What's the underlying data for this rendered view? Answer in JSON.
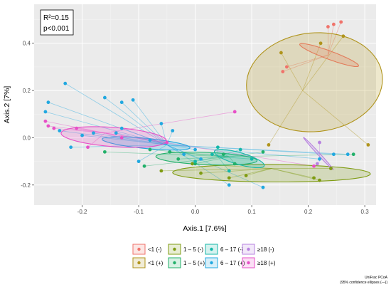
{
  "chart_data": {
    "type": "scatter",
    "xlabel": "Axis.1   [7.6%]",
    "ylabel": "Axis.2   [7%]",
    "xlim": [
      -0.285,
      0.32
    ],
    "ylim": [
      -0.285,
      0.565
    ],
    "x_ticks": [
      -0.2,
      -0.1,
      0.0,
      0.1,
      0.2,
      0.3
    ],
    "x_tick_labels": [
      "-0.2",
      "-0.1",
      "0.0",
      "0.1",
      "0.2",
      "0.3"
    ],
    "y_ticks": [
      -0.2,
      0.0,
      0.2,
      0.4
    ],
    "y_tick_labels": [
      "-0.2",
      "0.0",
      "0.2",
      "0.4"
    ],
    "grid": true,
    "annotation": {
      "line1": "R²=0.15",
      "line2": "p<0.001"
    },
    "caption": {
      "line1": "UniFrac PCoA",
      "line2": "(95% confidence ellipses (---))"
    },
    "legend_position": "bottom",
    "series": [
      {
        "name": "<1 (-)",
        "color": "#f0736b",
        "centroid": [
          0.235,
          0.35
        ],
        "ellipse": {
          "cx": 0.237,
          "cy": 0.35,
          "rx": 0.07,
          "ry": 0.014,
          "angle_deg": -43
        },
        "points": [
          [
            0.235,
            0.47
          ],
          [
            0.258,
            0.49
          ],
          [
            0.245,
            0.48
          ],
          [
            0.155,
            0.28
          ],
          [
            0.162,
            0.3
          ]
        ]
      },
      {
        "name": "<1 (+)",
        "color": "#b0941c",
        "centroid": [
          0.19,
          0.2
        ],
        "ellipse": {
          "cx": 0.211,
          "cy": 0.235,
          "rx": 0.12,
          "ry": 0.21,
          "angle_deg": -3
        },
        "points": [
          [
            0.152,
            0.36
          ],
          [
            0.222,
            0.4
          ],
          [
            0.262,
            0.43
          ],
          [
            0.13,
            -0.03
          ],
          [
            0.306,
            -0.03
          ]
        ]
      },
      {
        "name": "1 – 5 (-)",
        "color": "#7f9c12",
        "centroid": [
          0.135,
          -0.13
        ],
        "ellipse": {
          "cx": 0.135,
          "cy": -0.15,
          "rx": 0.175,
          "ry": 0.037,
          "angle_deg": -1
        },
        "points": [
          [
            -0.06,
            -0.14
          ],
          [
            -0.005,
            -0.11
          ],
          [
            0.06,
            -0.17
          ],
          [
            0.09,
            -0.16
          ],
          [
            0.21,
            -0.17
          ],
          [
            0.22,
            -0.18
          ],
          [
            0.01,
            -0.15
          ],
          [
            0.24,
            -0.13
          ]
        ]
      },
      {
        "name": "1 – 5 (+)",
        "color": "#22b06a",
        "centroid": [
          0.06,
          -0.08
        ],
        "ellipse": {
          "cx": 0.02,
          "cy": -0.088,
          "rx": 0.09,
          "ry": 0.026,
          "angle_deg": -6
        },
        "points": [
          [
            -0.16,
            -0.06
          ],
          [
            -0.08,
            -0.05
          ],
          [
            -0.09,
            -0.12
          ],
          [
            -0.03,
            -0.09
          ],
          [
            0.0,
            -0.11
          ],
          [
            0.05,
            -0.07
          ],
          [
            0.12,
            -0.06
          ],
          [
            0.28,
            -0.07
          ],
          [
            -0.045,
            -0.06
          ],
          [
            0.07,
            -0.11
          ]
        ]
      },
      {
        "name": "6 – 17 (-)",
        "color": "#14b7a9",
        "centroid": [
          0.04,
          -0.08
        ],
        "ellipse": {
          "cx": 0.078,
          "cy": -0.088,
          "rx": 0.055,
          "ry": 0.021,
          "angle_deg": -40
        },
        "points": [
          [
            0.04,
            -0.04
          ],
          [
            0.08,
            -0.05
          ],
          [
            0.1,
            -0.09
          ],
          [
            0.06,
            -0.14
          ],
          [
            0.0,
            -0.1
          ],
          [
            0.03,
            -0.07
          ]
        ]
      },
      {
        "name": "6 – 17 (+)",
        "color": "#21a8e0",
        "centroid": [
          -0.05,
          -0.03
        ],
        "ellipse": {
          "cx": -0.087,
          "cy": -0.024,
          "rx": 0.08,
          "ry": 0.021,
          "angle_deg": -14
        },
        "points": [
          [
            -0.23,
            0.23
          ],
          [
            -0.16,
            0.17
          ],
          [
            -0.13,
            0.15
          ],
          [
            -0.11,
            0.16
          ],
          [
            -0.26,
            0.15
          ],
          [
            -0.265,
            0.11
          ],
          [
            -0.24,
            0.03
          ],
          [
            -0.22,
            -0.04
          ],
          [
            -0.2,
            0.01
          ],
          [
            -0.18,
            0.02
          ],
          [
            -0.13,
            0.04
          ],
          [
            -0.06,
            0.06
          ],
          [
            -0.04,
            0.03
          ],
          [
            -0.02,
            -0.07
          ],
          [
            0.01,
            -0.09
          ],
          [
            0.06,
            -0.2
          ],
          [
            0.12,
            -0.21
          ],
          [
            0.22,
            -0.09
          ],
          [
            0.245,
            -0.07
          ],
          [
            0.27,
            -0.07
          ],
          [
            -0.1,
            -0.1
          ],
          [
            0.0,
            -0.05
          ],
          [
            -0.14,
            0.02
          ],
          [
            -0.08,
            -0.01
          ]
        ]
      },
      {
        "name": "≥18 (-)",
        "color": "#b781e0",
        "centroid": [
          0.22,
          -0.1
        ],
        "ellipse": {
          "cx": 0.218,
          "cy": -0.067,
          "rx": 0.073,
          "ry": 0.0025,
          "angle_deg": -69
        },
        "points": [
          [
            0.216,
            -0.11
          ],
          [
            0.22,
            -0.02
          ]
        ]
      },
      {
        "name": "≥18 (+)",
        "color": "#e74fc7",
        "centroid": [
          -0.16,
          0.02
        ],
        "ellipse": {
          "cx": -0.144,
          "cy": 0.003,
          "rx": 0.095,
          "ry": 0.04,
          "angle_deg": -12
        },
        "points": [
          [
            -0.265,
            0.07
          ],
          [
            -0.26,
            0.05
          ],
          [
            -0.25,
            0.04
          ],
          [
            -0.21,
            0.04
          ],
          [
            -0.19,
            -0.04
          ],
          [
            -0.13,
            0.0
          ],
          [
            0.07,
            0.11
          ],
          [
            0.21,
            -0.12
          ],
          [
            -0.05,
            -0.02
          ]
        ]
      }
    ]
  }
}
